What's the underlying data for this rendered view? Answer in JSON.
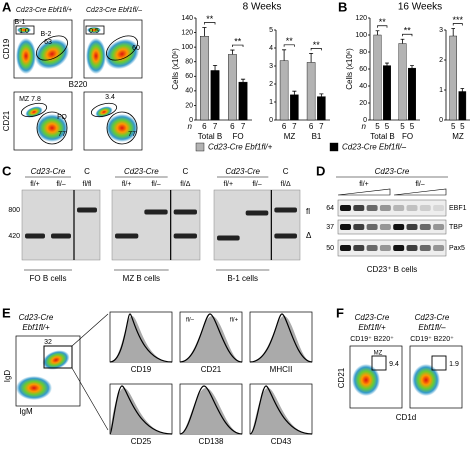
{
  "chart_data": [
    {
      "type": "bar",
      "title": "8 Weeks",
      "ylabel": "Cells (x10⁶)",
      "categories": [
        "Total B",
        "FO"
      ],
      "series": [
        {
          "name": "Cd23-Cre Ebf1fl/+",
          "color": "#b3b3b3",
          "values": [
            115,
            90
          ],
          "errors": [
            12,
            6
          ]
        },
        {
          "name": "Cd23-Cre Ebf1fl/–",
          "color": "#000000",
          "values": [
            68,
            52
          ],
          "errors": [
            7,
            4
          ]
        }
      ],
      "ylim": [
        0,
        140
      ],
      "yticks": [
        0,
        20,
        40,
        60,
        80,
        100,
        120,
        140
      ],
      "n_label": "n",
      "n": [
        [
          6,
          7
        ],
        [
          6,
          7
        ]
      ],
      "significance": [
        "**",
        "**"
      ]
    },
    {
      "type": "bar",
      "categories": [
        "MZ",
        "B1"
      ],
      "series": [
        {
          "color": "#b3b3b3",
          "values": [
            3.3,
            3.2
          ],
          "errors": [
            0.6,
            0.5
          ]
        },
        {
          "color": "#000000",
          "values": [
            1.4,
            1.3
          ],
          "errors": [
            0.2,
            0.15
          ]
        }
      ],
      "ylim": [
        0,
        5
      ],
      "yticks": [
        0,
        1,
        2,
        3,
        4,
        5
      ],
      "n": [
        [
          6,
          7
        ],
        [
          6,
          7
        ]
      ],
      "significance": [
        "**",
        "**"
      ]
    },
    {
      "type": "bar",
      "title": "16 Weeks",
      "ylabel": "Cells (x10⁶)",
      "categories": [
        "Total B",
        "FO"
      ],
      "series": [
        {
          "color": "#b3b3b3",
          "values": [
            100,
            90
          ],
          "errors": [
            5,
            5
          ]
        },
        {
          "color": "#000000",
          "values": [
            64,
            61
          ],
          "errors": [
            3,
            3
          ]
        }
      ],
      "ylim": [
        0,
        120
      ],
      "yticks": [
        0,
        20,
        40,
        60,
        80,
        100,
        120
      ],
      "n_label": "n",
      "n": [
        [
          5,
          5
        ],
        [
          5,
          5
        ]
      ],
      "significance": [
        "**",
        "**"
      ]
    },
    {
      "type": "bar",
      "categories": [
        "MZ"
      ],
      "series": [
        {
          "color": "#b3b3b3",
          "values": [
            2.8
          ],
          "errors": [
            0.25
          ]
        },
        {
          "color": "#000000",
          "values": [
            0.95
          ],
          "errors": [
            0.1
          ]
        }
      ],
      "ylim": [
        0,
        3
      ],
      "yticks": [
        0,
        1,
        2,
        3
      ],
      "n": [
        [
          5,
          5
        ]
      ],
      "significance": [
        "***"
      ]
    }
  ],
  "panel_labels": [
    "A",
    "B",
    "C",
    "D",
    "E",
    "F"
  ],
  "flow_a": {
    "genotypes": [
      "Cd23-Cre Ebf1fl/+",
      "Cd23-Cre Ebf1fl/–"
    ],
    "top_gates": [
      "B-1",
      "1.0",
      "B-2",
      "63",
      "0.5",
      "60"
    ],
    "top_axes": [
      "CD19",
      "B220"
    ],
    "bottom_gates": [
      "MZ 7.8",
      "FO",
      "77",
      "3.4",
      "77"
    ],
    "bottom_axis": "CD21"
  },
  "gels": {
    "genotype": "Cd23-Cre",
    "control": "C",
    "lanes": [
      [
        "fl/+",
        "fl/–",
        "fl/fl"
      ],
      [
        "fl/+",
        "fl/–",
        "fl/Δ"
      ],
      [
        "fl/+",
        "fl/–",
        "fl/Δ"
      ]
    ],
    "markers": [
      "800",
      "420"
    ],
    "bands": [
      "fl",
      "Δ"
    ],
    "groups": [
      "FO B cells",
      "MZ B cells",
      "B-1 cells"
    ]
  },
  "western": {
    "genotype": "Cd23-Cre",
    "groups": [
      "fl/+",
      "fl/–"
    ],
    "mw": [
      "64",
      "37",
      "50"
    ],
    "proteins": [
      "EBF1",
      "TBP",
      "Pax5"
    ],
    "caption": "CD23⁺ B cells"
  },
  "flow_e": {
    "genotype": [
      "Cd23-Cre",
      "Ebf1fl/+"
    ],
    "gate": "32",
    "axes": [
      "IgD",
      "IgM"
    ],
    "histograms": [
      "CD19",
      "CD21",
      "MHCII",
      "CD25",
      "CD138",
      "CD43"
    ],
    "overlay": [
      "fl/–",
      "fl/+"
    ]
  },
  "flow_f": {
    "genotypes": [
      [
        "Cd23-Cre",
        "Ebf1fl/+"
      ],
      [
        "Cd23-Cre",
        "Ebf1fl/–"
      ]
    ],
    "gate_pop": "CD19⁺ B220⁺",
    "gate": "MZ",
    "values": [
      "9.4",
      "1.9"
    ],
    "axes": [
      "CD21",
      "CD1d"
    ]
  }
}
